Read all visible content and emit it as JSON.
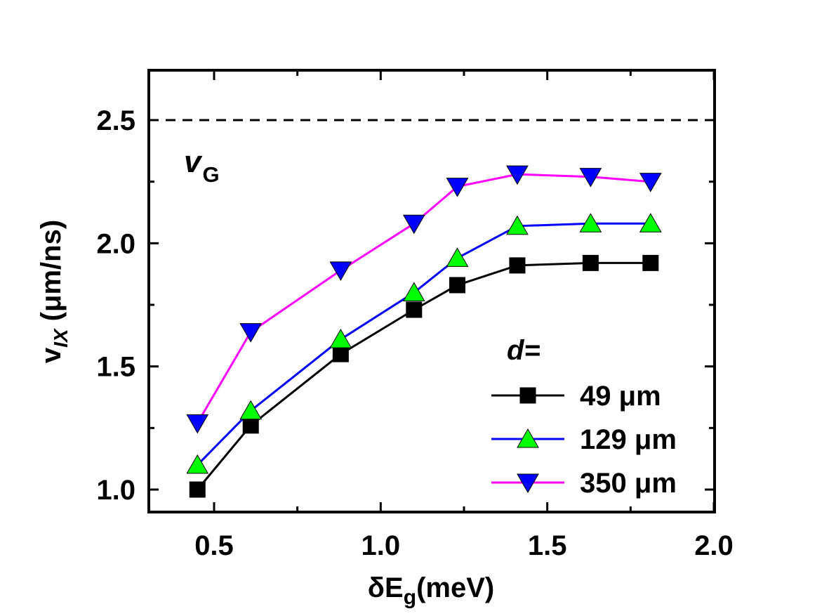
{
  "chart_data": {
    "type": "line",
    "xlabel": {
      "main": "δE",
      "sub": "g",
      "tail": "(meV)"
    },
    "ylabel": {
      "main": "v",
      "sub": "IX",
      "tail": " (μm/ns)"
    },
    "xlim": [
      0.3,
      2.0
    ],
    "ylim": [
      0.95,
      2.7
    ],
    "xticks": [
      {
        "v": 0.5,
        "label": "0.5"
      },
      {
        "v": 1.0,
        "label": "1.0"
      },
      {
        "v": 1.5,
        "label": "1.5"
      },
      {
        "v": 2.0,
        "label": "2.0"
      }
    ],
    "yticks": [
      {
        "v": 1.0,
        "label": "1.0"
      },
      {
        "v": 1.5,
        "label": "1.5"
      },
      {
        "v": 2.0,
        "label": "2.0"
      },
      {
        "v": 2.5,
        "label": "2.5"
      }
    ],
    "x": [
      0.45,
      0.61,
      0.88,
      1.1,
      1.23,
      1.41,
      1.63,
      1.81
    ],
    "series": [
      {
        "name": "49 μm",
        "marker": "square",
        "marker_color": "#000000",
        "line_color": "#000000",
        "values": [
          1.0,
          1.26,
          1.55,
          1.73,
          1.83,
          1.91,
          1.92,
          1.92
        ]
      },
      {
        "name": "129 μm",
        "marker": "triangle-up",
        "marker_color": "#00ff00",
        "line_color": "#0000ff",
        "values": [
          1.1,
          1.32,
          1.61,
          1.8,
          1.94,
          2.07,
          2.08,
          2.08
        ]
      },
      {
        "name": "350 μm",
        "marker": "triangle-down",
        "marker_color": "#0000ff",
        "line_color": "#ff00ff",
        "values": [
          1.27,
          1.64,
          1.89,
          2.08,
          2.23,
          2.28,
          2.27,
          2.25
        ]
      }
    ],
    "reference_line": {
      "y": 2.5,
      "style": "dashed",
      "label_main": "v",
      "label_sub": "G"
    },
    "legend": {
      "title": "d=",
      "placement": "bottom-right"
    },
    "grid": false
  }
}
